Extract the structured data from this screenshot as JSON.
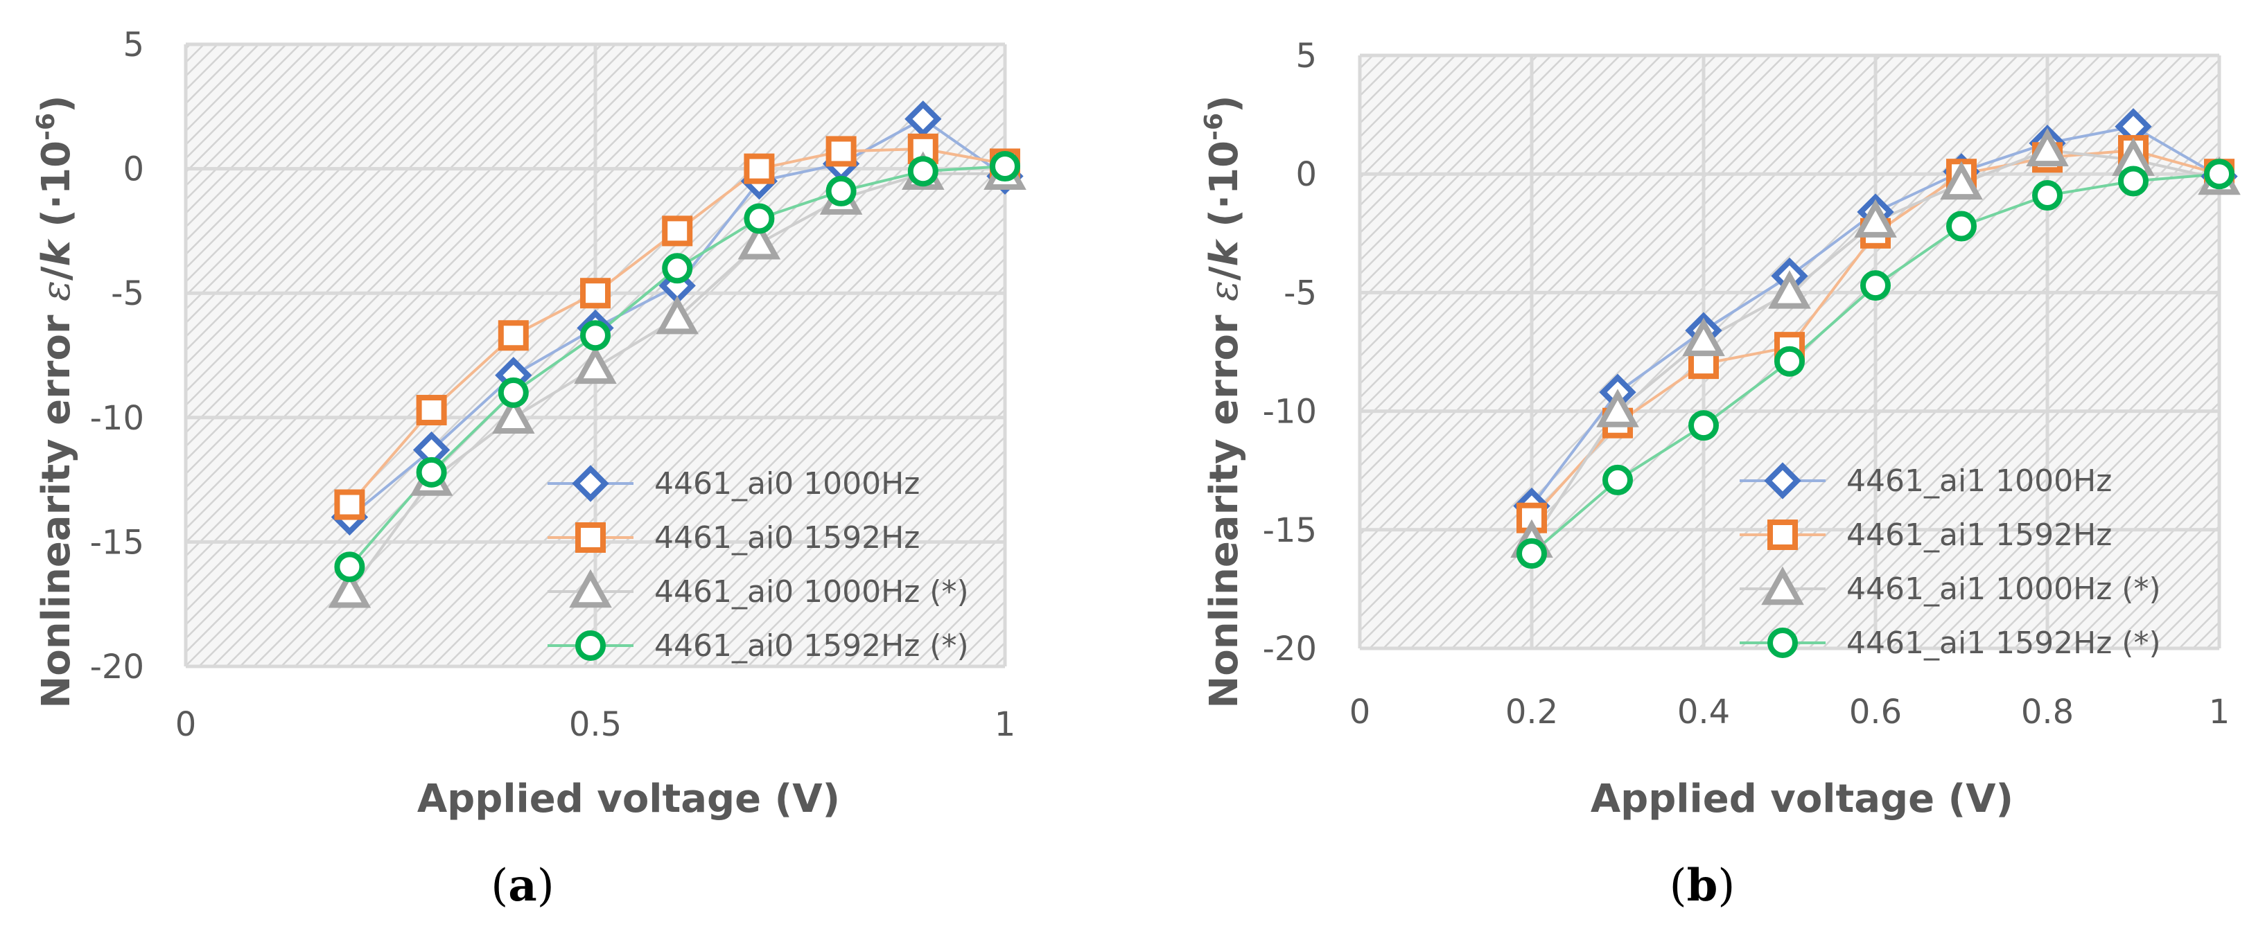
{
  "chart_data": [
    {
      "type": "line",
      "id": "a",
      "caption_open": "(",
      "caption_letter": "a",
      "caption_close": ")",
      "xlabel": "Applied voltage (V)",
      "ylabel": "Nonlinearity error ε/k (·10⁻⁶)",
      "ylabel_main": "Nonlinearity error ",
      "ylabel_eps": "ε",
      "ylabel_slash": "/",
      "ylabel_k": "k",
      "ylabel_paren": " (·10",
      "ylabel_exp": "-6",
      "ylabel_close": ")",
      "xlim": [
        0,
        1
      ],
      "ylim": [
        -20,
        5
      ],
      "x_ticks": [
        0,
        0.5,
        1
      ],
      "x_tick_labels": [
        "0",
        "0.5",
        "1"
      ],
      "y_ticks": [
        5,
        0,
        -5,
        -10,
        -15,
        -20
      ],
      "y_tick_labels": [
        "5",
        "0",
        "-5",
        "-10",
        "-15",
        "-20"
      ],
      "grid": true,
      "legend_position": "bottom-right",
      "series": [
        {
          "name": "4461_ai0 1000Hz",
          "marker": "diamond",
          "color": "#4472c4",
          "x": [
            0.2,
            0.3,
            0.4,
            0.5,
            0.6,
            0.7,
            0.8,
            0.9,
            1.0
          ],
          "y": [
            -14,
            -11.3,
            -8.3,
            -6.4,
            -4.7,
            -0.5,
            0.2,
            2.0,
            -0.3
          ]
        },
        {
          "name": "4461_ai0 1592Hz",
          "marker": "square",
          "color": "#ed7d31",
          "x": [
            0.2,
            0.3,
            0.4,
            0.5,
            0.6,
            0.7,
            0.8,
            0.9,
            1.0
          ],
          "y": [
            -13.5,
            -9.7,
            -6.7,
            -5.0,
            -2.5,
            0.0,
            0.7,
            0.8,
            0.2
          ]
        },
        {
          "name": "4461_ai0 1000Hz (*)",
          "marker": "triangle",
          "color": "#a5a5a5",
          "x": [
            0.2,
            0.3,
            0.4,
            0.5,
            0.6,
            0.7,
            0.8,
            0.9,
            1.0
          ],
          "y": [
            -17,
            -12.5,
            -10,
            -8,
            -6,
            -3.0,
            -1.2,
            -0.2,
            -0.2
          ]
        },
        {
          "name": "4461_ai0 1592Hz (*)",
          "marker": "circle",
          "color": "#00b050",
          "x": [
            0.2,
            0.3,
            0.4,
            0.5,
            0.6,
            0.7,
            0.8,
            0.9,
            1.0
          ],
          "y": [
            -16,
            -12.2,
            -9,
            -6.7,
            -4.0,
            -2.0,
            -0.9,
            -0.1,
            0.1
          ]
        }
      ]
    },
    {
      "type": "line",
      "id": "b",
      "caption_open": "(",
      "caption_letter": "b",
      "caption_close": ")",
      "xlabel": "Applied voltage (V)",
      "ylabel": "Nonlinearity error ε/k (·10⁻⁶)",
      "ylabel_main": "Nonlinearity error ",
      "ylabel_eps": "ε",
      "ylabel_slash": "/",
      "ylabel_k": "k",
      "ylabel_paren": " (·10",
      "ylabel_exp": "-6",
      "ylabel_close": ")",
      "xlim": [
        0,
        1
      ],
      "ylim": [
        -20,
        5
      ],
      "x_ticks": [
        0,
        0.2,
        0.4,
        0.6,
        0.8,
        1
      ],
      "x_tick_labels": [
        "0",
        "0.2",
        "0.4",
        "0.6",
        "0.8",
        "1"
      ],
      "y_ticks": [
        5,
        0,
        -5,
        -10,
        -15,
        -20
      ],
      "y_tick_labels": [
        "5",
        "0",
        "-5",
        "-10",
        "-15",
        "-20"
      ],
      "grid": true,
      "legend_position": "bottom-right",
      "series": [
        {
          "name": "4461_ai1 1000Hz",
          "marker": "diamond",
          "color": "#4472c4",
          "x": [
            0.2,
            0.3,
            0.4,
            0.5,
            0.6,
            0.7,
            0.8,
            0.9,
            1.0
          ],
          "y": [
            -14,
            -9.2,
            -6.6,
            -4.3,
            -1.6,
            0.1,
            1.3,
            2.0,
            -0.1
          ]
        },
        {
          "name": "4461_ai1 1592Hz",
          "marker": "square",
          "color": "#ed7d31",
          "x": [
            0.2,
            0.3,
            0.4,
            0.5,
            0.6,
            0.7,
            0.8,
            0.9,
            1.0
          ],
          "y": [
            -14.5,
            -10.5,
            -8.0,
            -7.3,
            -2.5,
            0.0,
            0.7,
            1.0,
            0.0
          ]
        },
        {
          "name": "4461_ai1 1000Hz (*)",
          "marker": "triangle",
          "color": "#a5a5a5",
          "x": [
            0.2,
            0.3,
            0.4,
            0.5,
            0.6,
            0.7,
            0.8,
            0.9,
            1.0
          ],
          "y": [
            -15.5,
            -10,
            -7.0,
            -5.0,
            -2.0,
            -0.4,
            1.0,
            0.6,
            -0.2
          ]
        },
        {
          "name": "4461_ai1 1592Hz (*)",
          "marker": "circle",
          "color": "#00b050",
          "x": [
            0.2,
            0.3,
            0.4,
            0.5,
            0.6,
            0.7,
            0.8,
            0.9,
            1.0
          ],
          "y": [
            -16,
            -12.9,
            -10.6,
            -7.9,
            -4.7,
            -2.2,
            -0.9,
            -0.3,
            0.0
          ]
        }
      ]
    }
  ]
}
